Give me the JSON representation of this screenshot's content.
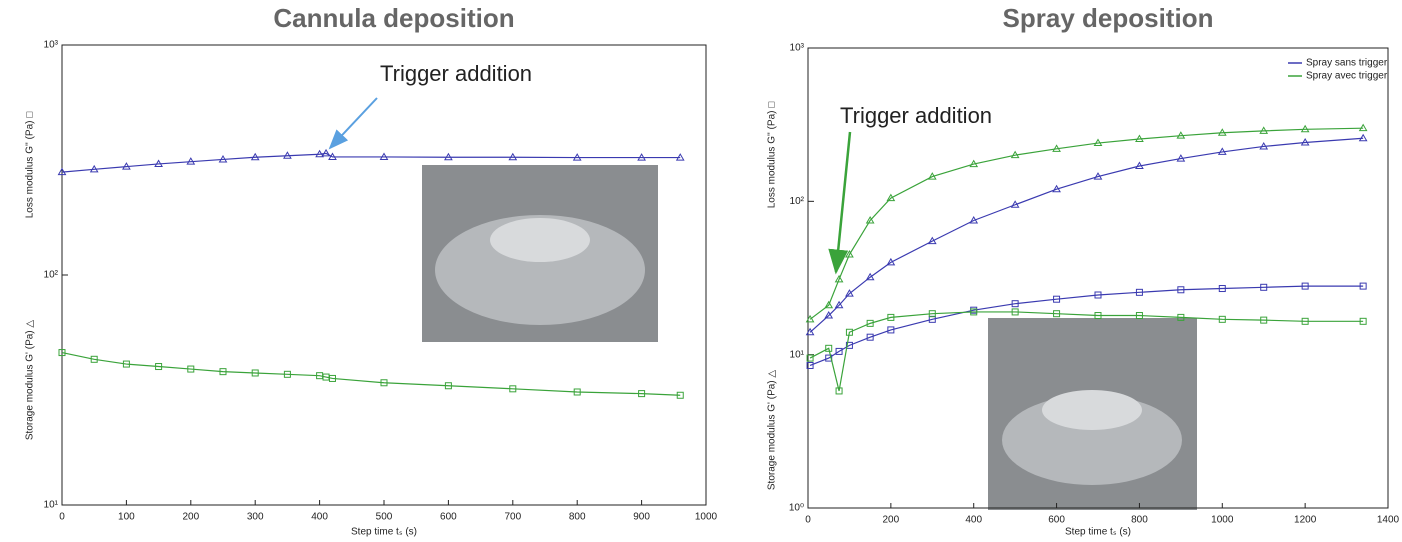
{
  "chart_data": [
    {
      "type": "line",
      "title": "Cannula deposition",
      "xlabel": "Step time tₛ (s)",
      "ylabels": [
        {
          "text": "Loss modulus G'' (Pa) □",
          "color": "#3aa33a"
        },
        {
          "text": "Storage modulus G' (Pa) △",
          "color": "#3a3ab0"
        }
      ],
      "annotation": "Trigger addition",
      "annotation_color": "#3aa33a",
      "xlim": [
        0,
        1000
      ],
      "xticks": [
        0,
        100,
        200,
        300,
        400,
        500,
        600,
        700,
        800,
        900,
        1000
      ],
      "ylim": [
        10,
        1000
      ],
      "ylog": true,
      "yticks": [
        {
          "value": 10,
          "label": "10¹"
        },
        {
          "value": 100,
          "label": "10²"
        },
        {
          "value": 1000,
          "label": "10³"
        }
      ],
      "x": [
        0,
        50,
        100,
        150,
        200,
        250,
        300,
        350,
        400,
        410,
        420,
        500,
        600,
        700,
        800,
        900,
        960
      ],
      "series": [
        {
          "color": "#3a3ab0",
          "marker": "triangle",
          "values": [
            280,
            288,
            296,
            304,
            311,
            318,
            325,
            330,
            335,
            338,
            326,
            326,
            325,
            325,
            324,
            324,
            324
          ]
        },
        {
          "color": "#3aa33a",
          "marker": "square",
          "values": [
            46,
            43,
            41,
            40,
            39,
            38,
            37.5,
            37,
            36.5,
            36,
            35.5,
            34,
            33,
            32,
            31,
            30.5,
            30
          ]
        }
      ]
    },
    {
      "type": "line",
      "title": "Spray deposition",
      "xlabel": "Step time tₛ (s)",
      "ylabels": [
        {
          "text": "Loss modulus G'' (Pa) □",
          "color": "#222222"
        },
        {
          "text": "Storage modulus G' (Pa) △",
          "color": "#222222"
        }
      ],
      "annotation": "Trigger addition",
      "annotation_color": "#3aa33a",
      "xlim": [
        0,
        1400
      ],
      "xticks": [
        0,
        200,
        400,
        600,
        800,
        1000,
        1200,
        1400
      ],
      "ylim": [
        1,
        1000
      ],
      "ylog": true,
      "yticks": [
        {
          "value": 1,
          "label": "10⁰"
        },
        {
          "value": 10,
          "label": "10¹"
        },
        {
          "value": 100,
          "label": "10²"
        },
        {
          "value": 1000,
          "label": "10³"
        }
      ],
      "legend": "upper right",
      "x": [
        5,
        50,
        75,
        100,
        150,
        200,
        300,
        400,
        500,
        600,
        700,
        800,
        900,
        1000,
        1100,
        1200,
        1340
      ],
      "series": [
        {
          "name": "Spray sans trigger",
          "color": "#3a3ab0",
          "marker": "triangle",
          "values": [
            14,
            18,
            21,
            25,
            32,
            40,
            55,
            75,
            95,
            120,
            145,
            170,
            190,
            210,
            228,
            242,
            258
          ]
        },
        {
          "name": "Spray avec trigger",
          "color": "#3aa33a",
          "marker": "triangle",
          "values": [
            17,
            21,
            31,
            45,
            75,
            105,
            145,
            175,
            200,
            220,
            240,
            255,
            268,
            280,
            288,
            295,
            300
          ]
        },
        {
          "color": "#3a3ab0",
          "marker": "square",
          "values": [
            8.5,
            9.5,
            10.5,
            11.5,
            13,
            14.5,
            17,
            19.5,
            21.5,
            23,
            24.5,
            25.5,
            26.5,
            27,
            27.5,
            28,
            28
          ]
        },
        {
          "color": "#3aa33a",
          "marker": "square",
          "values": [
            9.5,
            11,
            5.8,
            14,
            16,
            17.5,
            18.5,
            19,
            19,
            18.5,
            18,
            18,
            17.5,
            17,
            16.8,
            16.5,
            16.5
          ]
        }
      ]
    }
  ]
}
